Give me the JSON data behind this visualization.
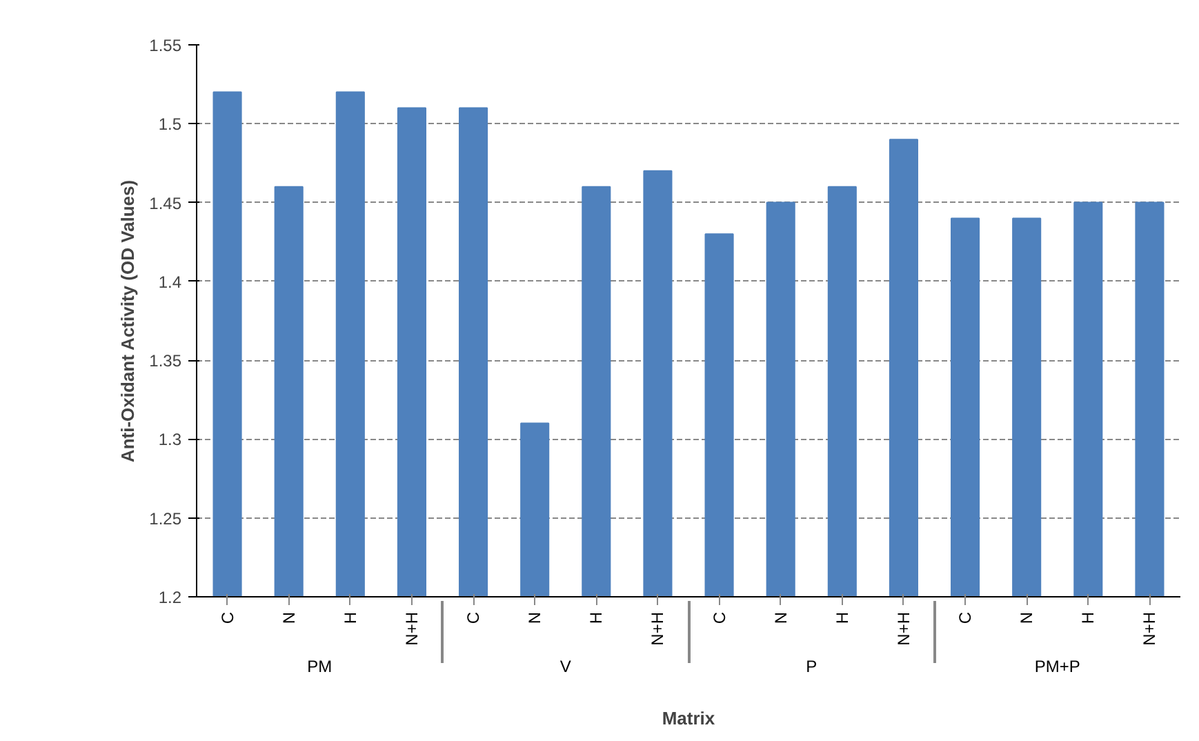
{
  "chart_data": {
    "type": "bar",
    "ylabel": "Anti-Oxidant Activity (OD Values)",
    "xlabel": "Matrix",
    "categories": [
      "C",
      "N",
      "H",
      "N+H",
      "C",
      "N",
      "H",
      "N+H",
      "C",
      "N",
      "H",
      "N+H",
      "C",
      "N",
      "H",
      "N+H"
    ],
    "values": [
      1.52,
      1.46,
      1.52,
      1.51,
      1.51,
      1.31,
      1.46,
      1.47,
      1.43,
      1.45,
      1.46,
      1.49,
      1.44,
      1.44,
      1.45,
      1.45
    ],
    "color": "#4f81bd",
    "ylim": [
      1.2,
      1.55
    ],
    "yticks": [
      1.2,
      1.25,
      1.3,
      1.35,
      1.4,
      1.45,
      1.5,
      1.55
    ],
    "grid": "y",
    "annotations": [
      "PM",
      "V",
      "P",
      "PM+P"
    ]
  }
}
